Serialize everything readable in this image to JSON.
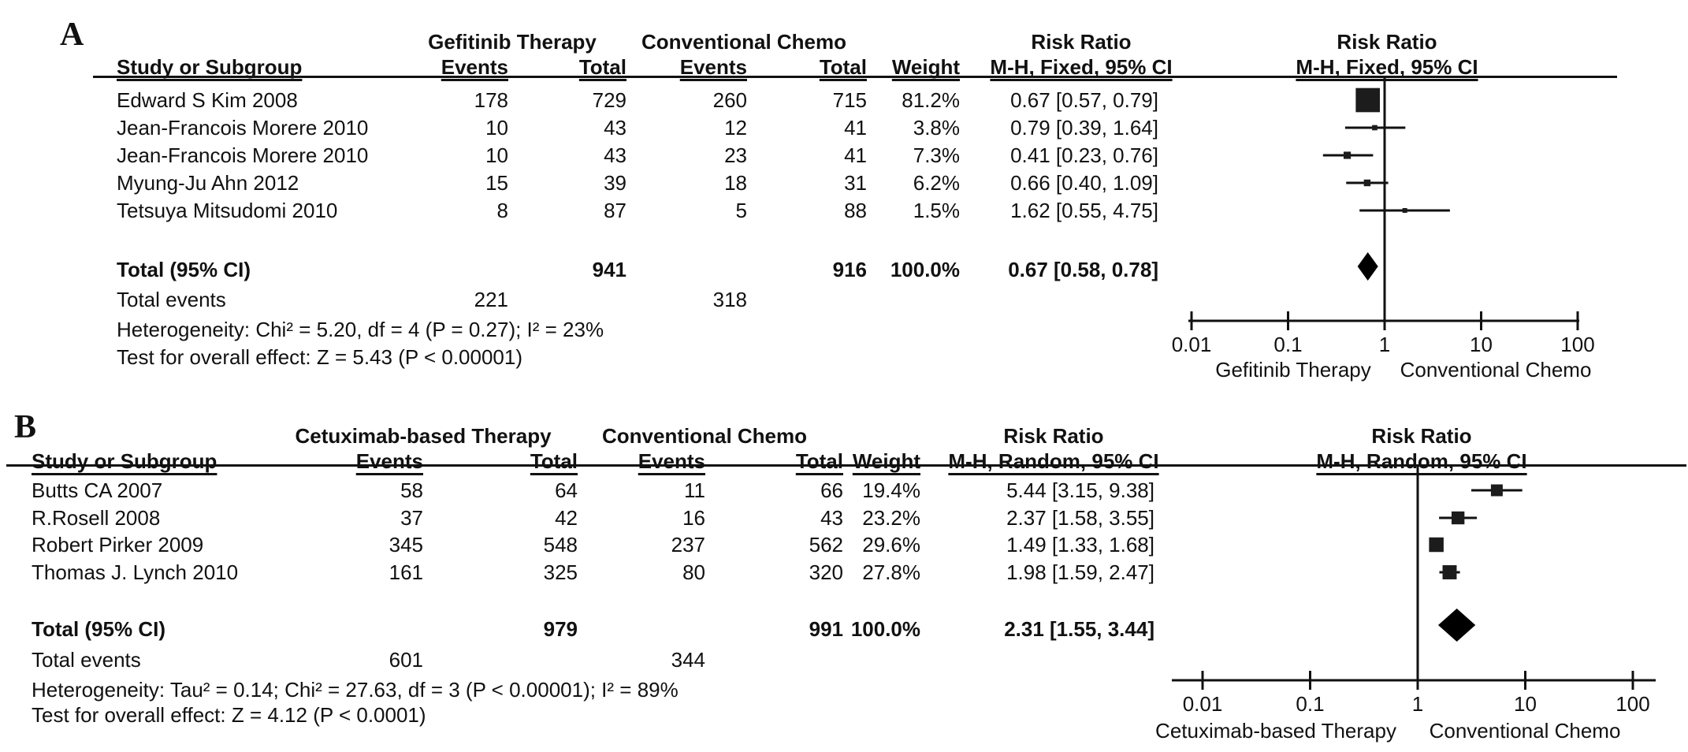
{
  "colors": {
    "ink": "#111111",
    "background": "#ffffff",
    "marker_fill": "#1c1c1c"
  },
  "chart_data": {
    "type": "scatter",
    "subtype": "forest-plot-meta-analysis",
    "x_scale": "log10",
    "xlim": [
      0.01,
      100
    ],
    "panels": [
      {
        "label": "A",
        "group1": "Gefitinib Therapy",
        "group2": "Conventional Chemo",
        "headers": {
          "study": "Study or Subgroup",
          "events": "Events",
          "total": "Total",
          "weight": "Weight"
        },
        "rr_title": "Risk Ratio",
        "method": "M-H, Fixed, 95% CI",
        "studies": [
          {
            "name": "Edward S Kim 2008",
            "events1": "178",
            "total1": "729",
            "events2": "260",
            "total2": "715",
            "weight": "81.2%",
            "rr_text": "0.67 [0.57, 0.79]",
            "rr": 0.67,
            "lo": 0.57,
            "hi": 0.79,
            "weight_pct": 81.2
          },
          {
            "name": "Jean-Francois Morere 2010",
            "events1": "10",
            "total1": "43",
            "events2": "12",
            "total2": "41",
            "weight": "3.8%",
            "rr_text": "0.79 [0.39, 1.64]",
            "rr": 0.79,
            "lo": 0.39,
            "hi": 1.64,
            "weight_pct": 3.8
          },
          {
            "name": "Jean-Francois Morere 2010",
            "events1": "10",
            "total1": "43",
            "events2": "23",
            "total2": "41",
            "weight": "7.3%",
            "rr_text": "0.41 [0.23, 0.76]",
            "rr": 0.41,
            "lo": 0.23,
            "hi": 0.76,
            "weight_pct": 7.3
          },
          {
            "name": "Myung-Ju Ahn 2012",
            "events1": "15",
            "total1": "39",
            "events2": "18",
            "total2": "31",
            "weight": "6.2%",
            "rr_text": "0.66 [0.40, 1.09]",
            "rr": 0.66,
            "lo": 0.4,
            "hi": 1.09,
            "weight_pct": 6.2
          },
          {
            "name": "Tetsuya Mitsudomi 2010",
            "events1": "8",
            "total1": "87",
            "events2": "5",
            "total2": "88",
            "weight": "1.5%",
            "rr_text": "1.62 [0.55, 4.75]",
            "rr": 1.62,
            "lo": 0.55,
            "hi": 4.75,
            "weight_pct": 1.5
          }
        ],
        "total": {
          "label": "Total (95% CI)",
          "total1": "941",
          "total2": "916",
          "weight": "100.0%",
          "rr_text": "0.67 [0.58, 0.78]",
          "rr": 0.67,
          "lo": 0.58,
          "hi": 0.78
        },
        "total_events": {
          "label": "Total events",
          "events1": "221",
          "events2": "318"
        },
        "heterogeneity": "Heterogeneity: Chi² = 5.20, df = 4 (P = 0.27); I² = 23%",
        "overall_effect": "Test for overall effect: Z = 5.43 (P < 0.00001)",
        "axis": {
          "ticks": [
            "0.01",
            "0.1",
            "1",
            "10",
            "100"
          ],
          "tick_values": [
            0.01,
            0.1,
            1,
            10,
            100
          ],
          "left_label": "Gefitinib Therapy",
          "right_label": "Conventional Chemo"
        }
      },
      {
        "label": "B",
        "group1": "Cetuximab-based Therapy",
        "group2": "Conventional Chemo",
        "headers": {
          "study": "Study or Subgroup",
          "events": "Events",
          "total": "Total",
          "weight": "Weight"
        },
        "rr_title": "Risk Ratio",
        "method": "M-H, Random, 95% CI",
        "studies": [
          {
            "name": "Butts CA 2007",
            "events1": "58",
            "total1": "64",
            "events2": "11",
            "total2": "66",
            "weight": "19.4%",
            "rr_text": "5.44 [3.15, 9.38]",
            "rr": 5.44,
            "lo": 3.15,
            "hi": 9.38,
            "weight_pct": 19.4
          },
          {
            "name": "R.Rosell 2008",
            "events1": "37",
            "total1": "42",
            "events2": "16",
            "total2": "43",
            "weight": "23.2%",
            "rr_text": "2.37 [1.58, 3.55]",
            "rr": 2.37,
            "lo": 1.58,
            "hi": 3.55,
            "weight_pct": 23.2
          },
          {
            "name": "Robert Pirker 2009",
            "events1": "345",
            "total1": "548",
            "events2": "237",
            "total2": "562",
            "weight": "29.6%",
            "rr_text": "1.49 [1.33, 1.68]",
            "rr": 1.49,
            "lo": 1.33,
            "hi": 1.68,
            "weight_pct": 29.6
          },
          {
            "name": "Thomas J. Lynch 2010",
            "events1": "161",
            "total1": "325",
            "events2": "80",
            "total2": "320",
            "weight": "27.8%",
            "rr_text": "1.98 [1.59, 2.47]",
            "rr": 1.98,
            "lo": 1.59,
            "hi": 2.47,
            "weight_pct": 27.8
          }
        ],
        "total": {
          "label": "Total (95% CI)",
          "total1": "979",
          "total2": "991",
          "weight": "100.0%",
          "rr_text": "2.31 [1.55, 3.44]",
          "rr": 2.31,
          "lo": 1.55,
          "hi": 3.44
        },
        "total_events": {
          "label": "Total events",
          "events1": "601",
          "events2": "344"
        },
        "heterogeneity": "Heterogeneity: Tau² = 0.14; Chi² = 27.63, df = 3 (P < 0.00001); I² = 89%",
        "overall_effect": "Test for overall effect: Z = 4.12 (P < 0.0001)",
        "axis": {
          "ticks": [
            "0.01",
            "0.1",
            "1",
            "10",
            "100"
          ],
          "tick_values": [
            0.01,
            0.1,
            1,
            10,
            100
          ],
          "left_label": "Cetuximab-based Therapy",
          "right_label": "Conventional Chemo"
        }
      }
    ]
  }
}
